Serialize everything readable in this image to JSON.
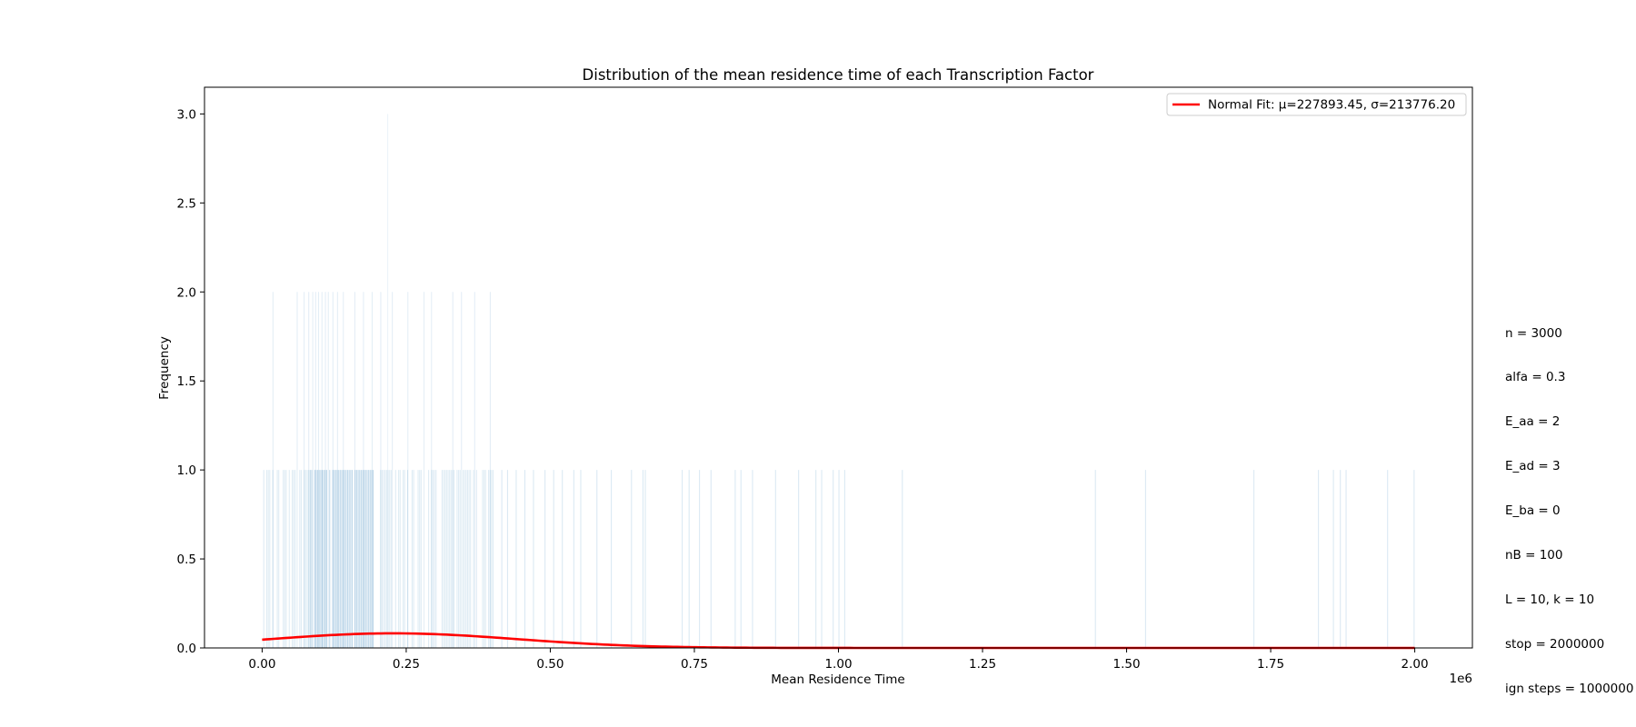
{
  "colors": {
    "histogram": "#1f77b4",
    "fit_line": "#ff0000",
    "axes": "#000000",
    "background": "#ffffff"
  },
  "chart_data": {
    "type": "bar",
    "subtype": "histogram-with-normal-fit",
    "title": "Distribution of the mean residence time of each Transcription Factor",
    "xlabel": "Mean Residence Time",
    "ylabel": "Frequency",
    "x_offset_label": "1e6",
    "xlim": [
      -100000,
      2100000
    ],
    "ylim": [
      0,
      3.15
    ],
    "x_ticks": [
      0,
      250000,
      500000,
      750000,
      1000000,
      1250000,
      1500000,
      1750000,
      2000000
    ],
    "x_tick_labels": [
      "0.00",
      "0.25",
      "0.50",
      "0.75",
      "1.00",
      "1.25",
      "1.50",
      "1.75",
      "2.00"
    ],
    "y_ticks": [
      0,
      0.5,
      1.0,
      1.5,
      2.0,
      2.5,
      3.0
    ],
    "y_tick_labels": [
      "0.0",
      "0.5",
      "1.0",
      "1.5",
      "2.0",
      "2.5",
      "3.0"
    ],
    "grid": false,
    "legend_position": "top-right",
    "histogram": {
      "description": "Many very narrow bins; most bins have count 0, non-empty bins have count 1, a few have 2, one has 3.",
      "bars_count_3": [
        217000
      ],
      "bars_count_2": [
        18000,
        60000,
        72000,
        80000,
        87000,
        92000,
        97000,
        103000,
        109000,
        114000,
        122000,
        130000,
        140000,
        160000,
        175000,
        190000,
        205000,
        225000,
        252000,
        280000,
        293000,
        330000,
        345000,
        368000,
        395000
      ],
      "bars_count_1_dense_range": [
        0,
        400000
      ],
      "bars_count_1_sparse": [
        415000,
        425000,
        440000,
        455000,
        470000,
        490000,
        505000,
        520000,
        540000,
        552000,
        580000,
        605000,
        640000,
        660000,
        664000,
        728000,
        740000,
        758000,
        778000,
        820000,
        830000,
        850000,
        890000,
        930000,
        960000,
        970000,
        990000,
        1000000,
        1010000,
        1110000,
        1445000,
        1532000,
        1720000,
        1832000,
        1858000,
        1870000,
        1880000,
        1952000,
        1998000
      ]
    },
    "series": [
      {
        "name": "Normal Fit: μ=227893.45, σ=213776.20",
        "type": "line",
        "distribution": "normal",
        "mu": 227893.45,
        "sigma": 213776.2,
        "scale_description": "pdf scaled to match histogram (peak ≈ 0.082 at x≈228000)",
        "peak_frequency": 0.082,
        "x_range": [
          0,
          2000000
        ]
      }
    ]
  },
  "annotation_lines": [
    "n = 3000",
    "alfa = 0.3",
    "E_aa = 2",
    "E_ad = 3",
    "E_ba = 0",
    "nB = 100",
    "L = 10, k = 10",
    "stop = 2000000",
    "ign steps = 1000000"
  ]
}
